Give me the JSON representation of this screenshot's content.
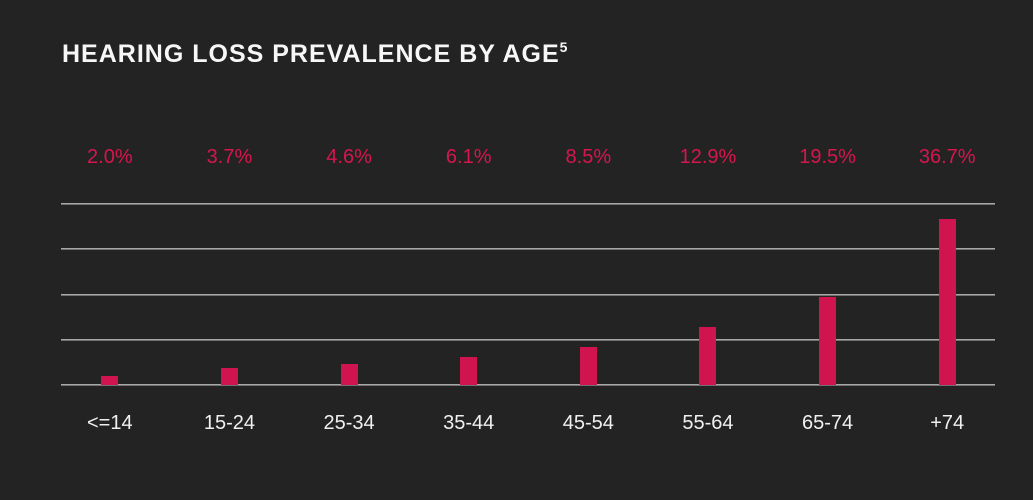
{
  "page": {
    "background": "#232323"
  },
  "title": {
    "text": "HEARING LOSS PREVALENCE BY AGE",
    "footnote_ref": "5",
    "color": "#f7f7f7"
  },
  "chart_data": {
    "type": "bar",
    "title": "HEARING LOSS PREVALENCE BY AGE",
    "footnote_ref": "5",
    "categories": [
      "<=14",
      "15-24",
      "25-34",
      "35-44",
      "45-54",
      "55-64",
      "65-74",
      "+74"
    ],
    "values": [
      2.0,
      3.7,
      4.6,
      6.1,
      8.5,
      12.9,
      19.5,
      36.7
    ],
    "value_labels": [
      "2.0%",
      "3.7%",
      "4.6%",
      "6.1%",
      "8.5%",
      "12.9%",
      "19.5%",
      "36.7%"
    ],
    "ylim": [
      0,
      40
    ],
    "grid_values": [
      40,
      30,
      20,
      10,
      0
    ],
    "grid": true,
    "legend": false,
    "colors": {
      "bar": "#d01450",
      "value_label": "#d6164f",
      "axis_label": "#f0f0f0",
      "gridline": "#a9a9a9",
      "background": "#232323",
      "title": "#f7f7f7"
    }
  }
}
